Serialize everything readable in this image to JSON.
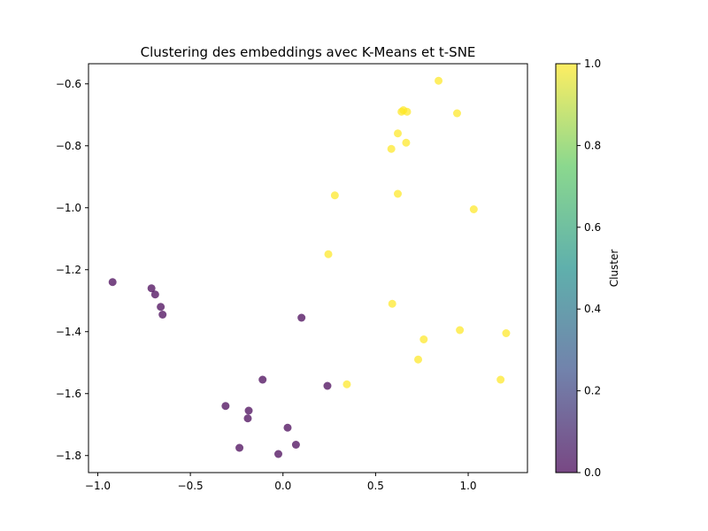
{
  "chart_data": {
    "type": "scatter",
    "title": "Clustering des embeddings avec K-Means et t-SNE",
    "xlabel": "",
    "ylabel": "",
    "xlim": [
      -1.05,
      1.32
    ],
    "ylim": [
      -1.855,
      -0.535
    ],
    "x_ticks": [
      -1.0,
      -0.5,
      0.0,
      0.5,
      1.0
    ],
    "x_tick_labels": [
      "−1.0",
      "−0.5",
      "0.0",
      "0.5",
      "1.0"
    ],
    "y_ticks": [
      -1.8,
      -1.6,
      -1.4,
      -1.2,
      -1.0,
      -0.8,
      -0.6
    ],
    "y_tick_labels": [
      "−1.8",
      "−1.6",
      "−1.4",
      "−1.2",
      "−1.0",
      "−0.8",
      "−0.6"
    ],
    "grid": false,
    "colorbar": {
      "label": "Cluster",
      "range": [
        0.0,
        1.0
      ],
      "ticks": [
        0.0,
        0.2,
        0.4,
        0.6,
        0.8,
        1.0
      ],
      "tick_labels": [
        "0.0",
        "0.2",
        "0.4",
        "0.6",
        "0.8",
        "1.0"
      ],
      "colormap": "viridis",
      "stops": [
        "#440154",
        "#3b528b",
        "#21918c",
        "#5ec962",
        "#fde725"
      ]
    },
    "alpha": 0.72,
    "points": [
      {
        "x": -0.92,
        "y": -1.24,
        "cluster": 0
      },
      {
        "x": -0.71,
        "y": -1.26,
        "cluster": 0
      },
      {
        "x": -0.69,
        "y": -1.28,
        "cluster": 0
      },
      {
        "x": -0.66,
        "y": -1.32,
        "cluster": 0
      },
      {
        "x": -0.65,
        "y": -1.345,
        "cluster": 0
      },
      {
        "x": 0.1,
        "y": -1.355,
        "cluster": 0
      },
      {
        "x": -0.11,
        "y": -1.555,
        "cluster": 0
      },
      {
        "x": 0.24,
        "y": -1.575,
        "cluster": 0
      },
      {
        "x": -0.31,
        "y": -1.64,
        "cluster": 0
      },
      {
        "x": -0.185,
        "y": -1.655,
        "cluster": 0
      },
      {
        "x": -0.19,
        "y": -1.68,
        "cluster": 0
      },
      {
        "x": 0.025,
        "y": -1.71,
        "cluster": 0
      },
      {
        "x": 0.07,
        "y": -1.765,
        "cluster": 0
      },
      {
        "x": -0.235,
        "y": -1.775,
        "cluster": 0
      },
      {
        "x": -0.025,
        "y": -1.795,
        "cluster": 0
      },
      {
        "x": 0.84,
        "y": -0.59,
        "cluster": 1
      },
      {
        "x": 0.64,
        "y": -0.69,
        "cluster": 1
      },
      {
        "x": 0.65,
        "y": -0.685,
        "cluster": 1
      },
      {
        "x": 0.67,
        "y": -0.69,
        "cluster": 1
      },
      {
        "x": 0.94,
        "y": -0.695,
        "cluster": 1
      },
      {
        "x": 0.62,
        "y": -0.76,
        "cluster": 1
      },
      {
        "x": 0.665,
        "y": -0.79,
        "cluster": 1
      },
      {
        "x": 0.585,
        "y": -0.81,
        "cluster": 1
      },
      {
        "x": 0.28,
        "y": -0.96,
        "cluster": 1
      },
      {
        "x": 0.62,
        "y": -0.955,
        "cluster": 1
      },
      {
        "x": 1.03,
        "y": -1.005,
        "cluster": 1
      },
      {
        "x": 0.245,
        "y": -1.15,
        "cluster": 1
      },
      {
        "x": 0.59,
        "y": -1.31,
        "cluster": 1
      },
      {
        "x": 0.955,
        "y": -1.395,
        "cluster": 1
      },
      {
        "x": 1.205,
        "y": -1.405,
        "cluster": 1
      },
      {
        "x": 0.76,
        "y": -1.425,
        "cluster": 1
      },
      {
        "x": 0.73,
        "y": -1.49,
        "cluster": 1
      },
      {
        "x": 0.345,
        "y": -1.57,
        "cluster": 1
      },
      {
        "x": 1.175,
        "y": -1.555,
        "cluster": 1
      }
    ]
  }
}
